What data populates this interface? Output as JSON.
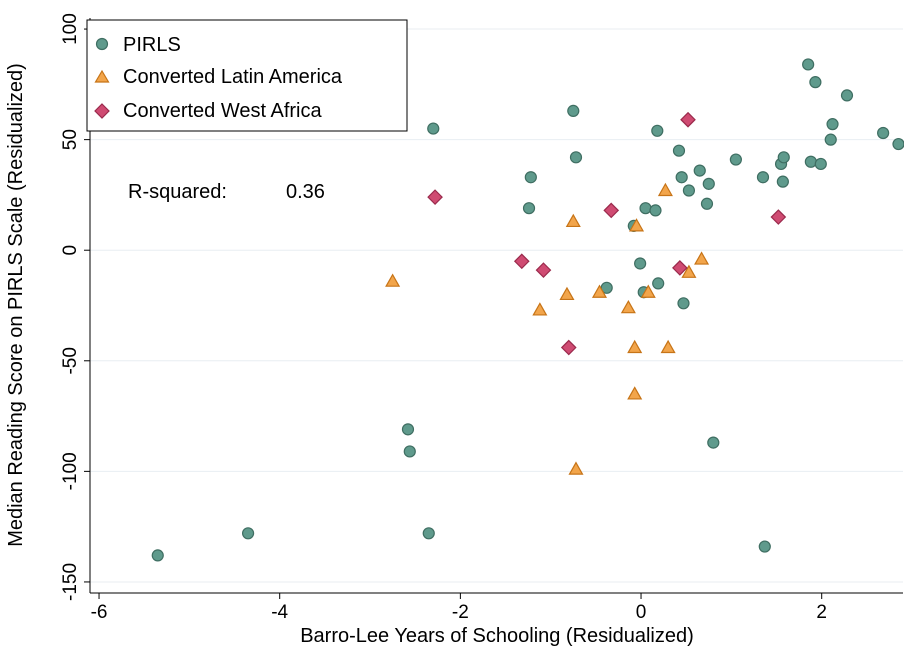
{
  "chart_data": {
    "type": "scatter",
    "xlabel": "Barro-Lee Years of Schooling (Residualized)",
    "ylabel": "Median Reading Score on PIRLS Scale (Residualized)",
    "xlim": [
      -6.1,
      2.9
    ],
    "ylim": [
      -155,
      105
    ],
    "xticks": [
      -6,
      -4,
      -2,
      0,
      2
    ],
    "yticks": [
      -150,
      -100,
      -50,
      0,
      50,
      100
    ],
    "grid": "horizontal",
    "legend_position": "top-left",
    "annotation": {
      "label": "R-squared:",
      "value": "0.36"
    },
    "series": [
      {
        "name": "PIRLS",
        "marker": "circle",
        "color": "#5f9a8c",
        "stroke": "#3f6e62",
        "points": [
          [
            -5.35,
            -138
          ],
          [
            -4.35,
            -128
          ],
          [
            -2.58,
            -81
          ],
          [
            -2.56,
            -91
          ],
          [
            -2.35,
            -128
          ],
          [
            -2.3,
            55
          ],
          [
            -1.22,
            33
          ],
          [
            -1.24,
            19
          ],
          [
            -0.75,
            63
          ],
          [
            -0.72,
            42
          ],
          [
            -0.38,
            -17
          ],
          [
            -0.08,
            11
          ],
          [
            -0.01,
            -6
          ],
          [
            0.03,
            -19
          ],
          [
            0.05,
            19
          ],
          [
            0.16,
            18
          ],
          [
            0.18,
            54
          ],
          [
            0.19,
            -15
          ],
          [
            0.42,
            45
          ],
          [
            0.45,
            33
          ],
          [
            0.47,
            -24
          ],
          [
            0.53,
            27
          ],
          [
            0.65,
            36
          ],
          [
            0.73,
            21
          ],
          [
            0.75,
            30
          ],
          [
            0.8,
            -87
          ],
          [
            1.05,
            41
          ],
          [
            1.35,
            33
          ],
          [
            1.37,
            -134
          ],
          [
            1.55,
            39
          ],
          [
            1.57,
            31
          ],
          [
            1.58,
            42
          ],
          [
            1.85,
            84
          ],
          [
            1.88,
            40
          ],
          [
            1.93,
            76
          ],
          [
            1.99,
            39
          ],
          [
            2.1,
            50
          ],
          [
            2.12,
            57
          ],
          [
            2.28,
            70
          ],
          [
            2.68,
            53
          ],
          [
            2.85,
            48
          ]
        ]
      },
      {
        "name": "Converted Latin America",
        "marker": "triangle",
        "color": "#f2a54b",
        "stroke": "#c77417",
        "points": [
          [
            -2.75,
            -14
          ],
          [
            -1.12,
            -27
          ],
          [
            -0.82,
            -20
          ],
          [
            -0.75,
            13
          ],
          [
            -0.72,
            -99
          ],
          [
            -0.46,
            -19
          ],
          [
            -0.14,
            -26
          ],
          [
            -0.07,
            -44
          ],
          [
            -0.07,
            -65
          ],
          [
            -0.05,
            11
          ],
          [
            0.08,
            -19
          ],
          [
            0.3,
            -44
          ],
          [
            0.27,
            27
          ],
          [
            0.53,
            -10
          ],
          [
            0.67,
            -4
          ]
        ]
      },
      {
        "name": "Converted West Africa",
        "marker": "diamond",
        "color": "#cf4b72",
        "stroke": "#9a2a4c",
        "points": [
          [
            -2.28,
            24
          ],
          [
            -1.32,
            -5
          ],
          [
            -1.08,
            -9
          ],
          [
            -0.8,
            -44
          ],
          [
            -0.33,
            18
          ],
          [
            0.43,
            -8
          ],
          [
            0.52,
            59
          ],
          [
            1.52,
            15
          ]
        ]
      }
    ]
  }
}
